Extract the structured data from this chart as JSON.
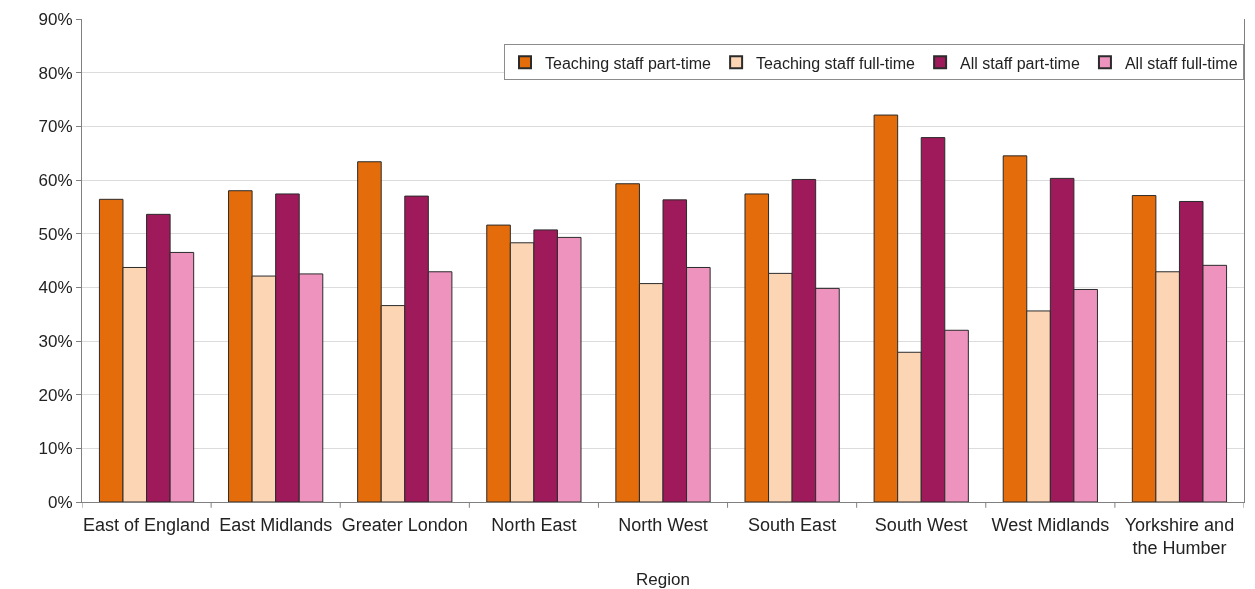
{
  "chart_data": {
    "type": "bar",
    "xlabel": "Region",
    "categories": [
      "East of England",
      "East Midlands",
      "Greater London",
      "North East",
      "North West",
      "South East",
      "South West",
      "West Midlands",
      "Yorkshire and the Humber"
    ],
    "series": [
      {
        "name": "Teaching staff part-time",
        "color": "#e46c0a",
        "values": [
          56.4,
          58.0,
          63.4,
          51.6,
          59.3,
          57.4,
          72.1,
          64.5,
          57.1
        ]
      },
      {
        "name": "Teaching staff full-time",
        "color": "#fcd5b5",
        "values": [
          43.7,
          42.1,
          36.6,
          48.3,
          40.7,
          42.6,
          27.9,
          35.6,
          42.9
        ]
      },
      {
        "name": "All staff part-time",
        "color": "#9e1a5a",
        "values": [
          53.6,
          57.4,
          57.0,
          50.7,
          56.3,
          60.1,
          67.9,
          60.3,
          56.0
        ]
      },
      {
        "name": "All staff full-time",
        "color": "#ee93be",
        "values": [
          46.5,
          42.5,
          42.9,
          49.3,
          43.7,
          39.8,
          32.0,
          39.6,
          44.1
        ]
      }
    ],
    "ylim": [
      0,
      90
    ],
    "yticks": [
      {
        "value": 0,
        "label": "0%"
      },
      {
        "value": 10,
        "label": "10%"
      },
      {
        "value": 20,
        "label": "20%"
      },
      {
        "value": 30,
        "label": "30%"
      },
      {
        "value": 40,
        "label": "40%"
      },
      {
        "value": 50,
        "label": "50%"
      },
      {
        "value": 60,
        "label": "60%"
      },
      {
        "value": 70,
        "label": "70%"
      },
      {
        "value": 80,
        "label": "80%"
      },
      {
        "value": 90,
        "label": "90%"
      }
    ],
    "grid": "y",
    "legend": "top right"
  }
}
